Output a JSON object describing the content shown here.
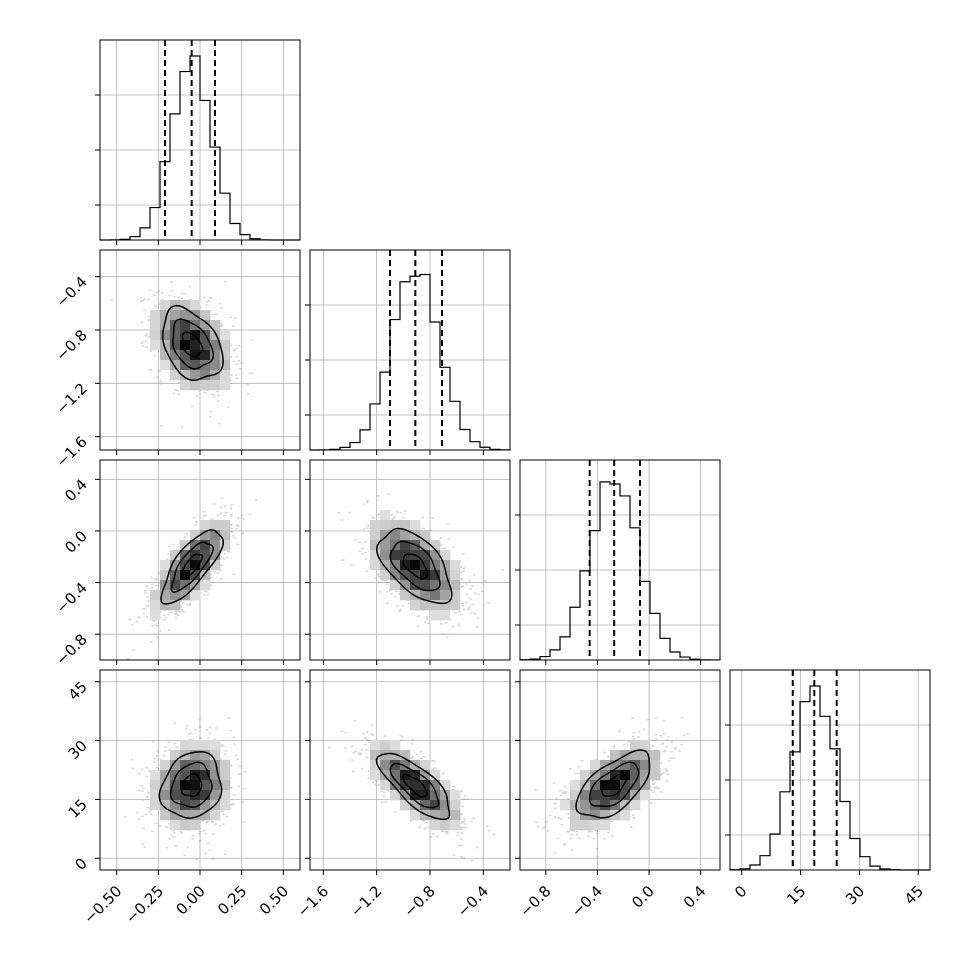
{
  "chart_data": {
    "type": "corner",
    "title": "",
    "parameters": [
      {
        "ticks": [
          -0.5,
          -0.25,
          0.0,
          0.25,
          0.5
        ],
        "tick_labels": [
          "−0.50",
          "−0.25",
          "0.00",
          "0.25",
          "0.50"
        ],
        "range": [
          -0.6,
          0.6
        ],
        "mean": -0.05,
        "std": 0.12,
        "quantiles": [
          -0.21,
          -0.05,
          0.09
        ]
      },
      {
        "ticks": [
          -1.6,
          -1.2,
          -0.8,
          -0.4
        ],
        "tick_labels": [
          "−1.6",
          "−1.2",
          "−0.8",
          "−0.4"
        ],
        "range": [
          -1.7,
          -0.2
        ],
        "mean": -0.91,
        "std": 0.18,
        "quantiles": [
          -1.1,
          -0.91,
          -0.71
        ]
      },
      {
        "ticks": [
          -0.8,
          -0.4,
          0.0,
          0.4
        ],
        "tick_labels": [
          "−0.8",
          "−0.4",
          "0.0",
          "0.4"
        ],
        "range": [
          -1.0,
          0.55
        ],
        "mean": -0.27,
        "std": 0.19,
        "quantiles": [
          -0.46,
          -0.27,
          -0.07
        ]
      },
      {
        "ticks": [
          0,
          15,
          30,
          45
        ],
        "tick_labels": [
          "0",
          "15",
          "30",
          "45"
        ],
        "range": [
          -3,
          48
        ],
        "mean": 18.5,
        "std": 5.6,
        "quantiles": [
          13.0,
          18.5,
          24.2
        ]
      }
    ],
    "correlations": [
      [
        1,
        -0.35,
        0.75,
        0.15
      ],
      [
        -0.35,
        1,
        -0.55,
        -0.75
      ],
      [
        0.75,
        -0.55,
        1,
        0.6
      ],
      [
        0.15,
        -0.75,
        0.6,
        1
      ]
    ],
    "histogram_bins": 20,
    "grid": true,
    "contour_levels": 3,
    "legend": "none"
  }
}
